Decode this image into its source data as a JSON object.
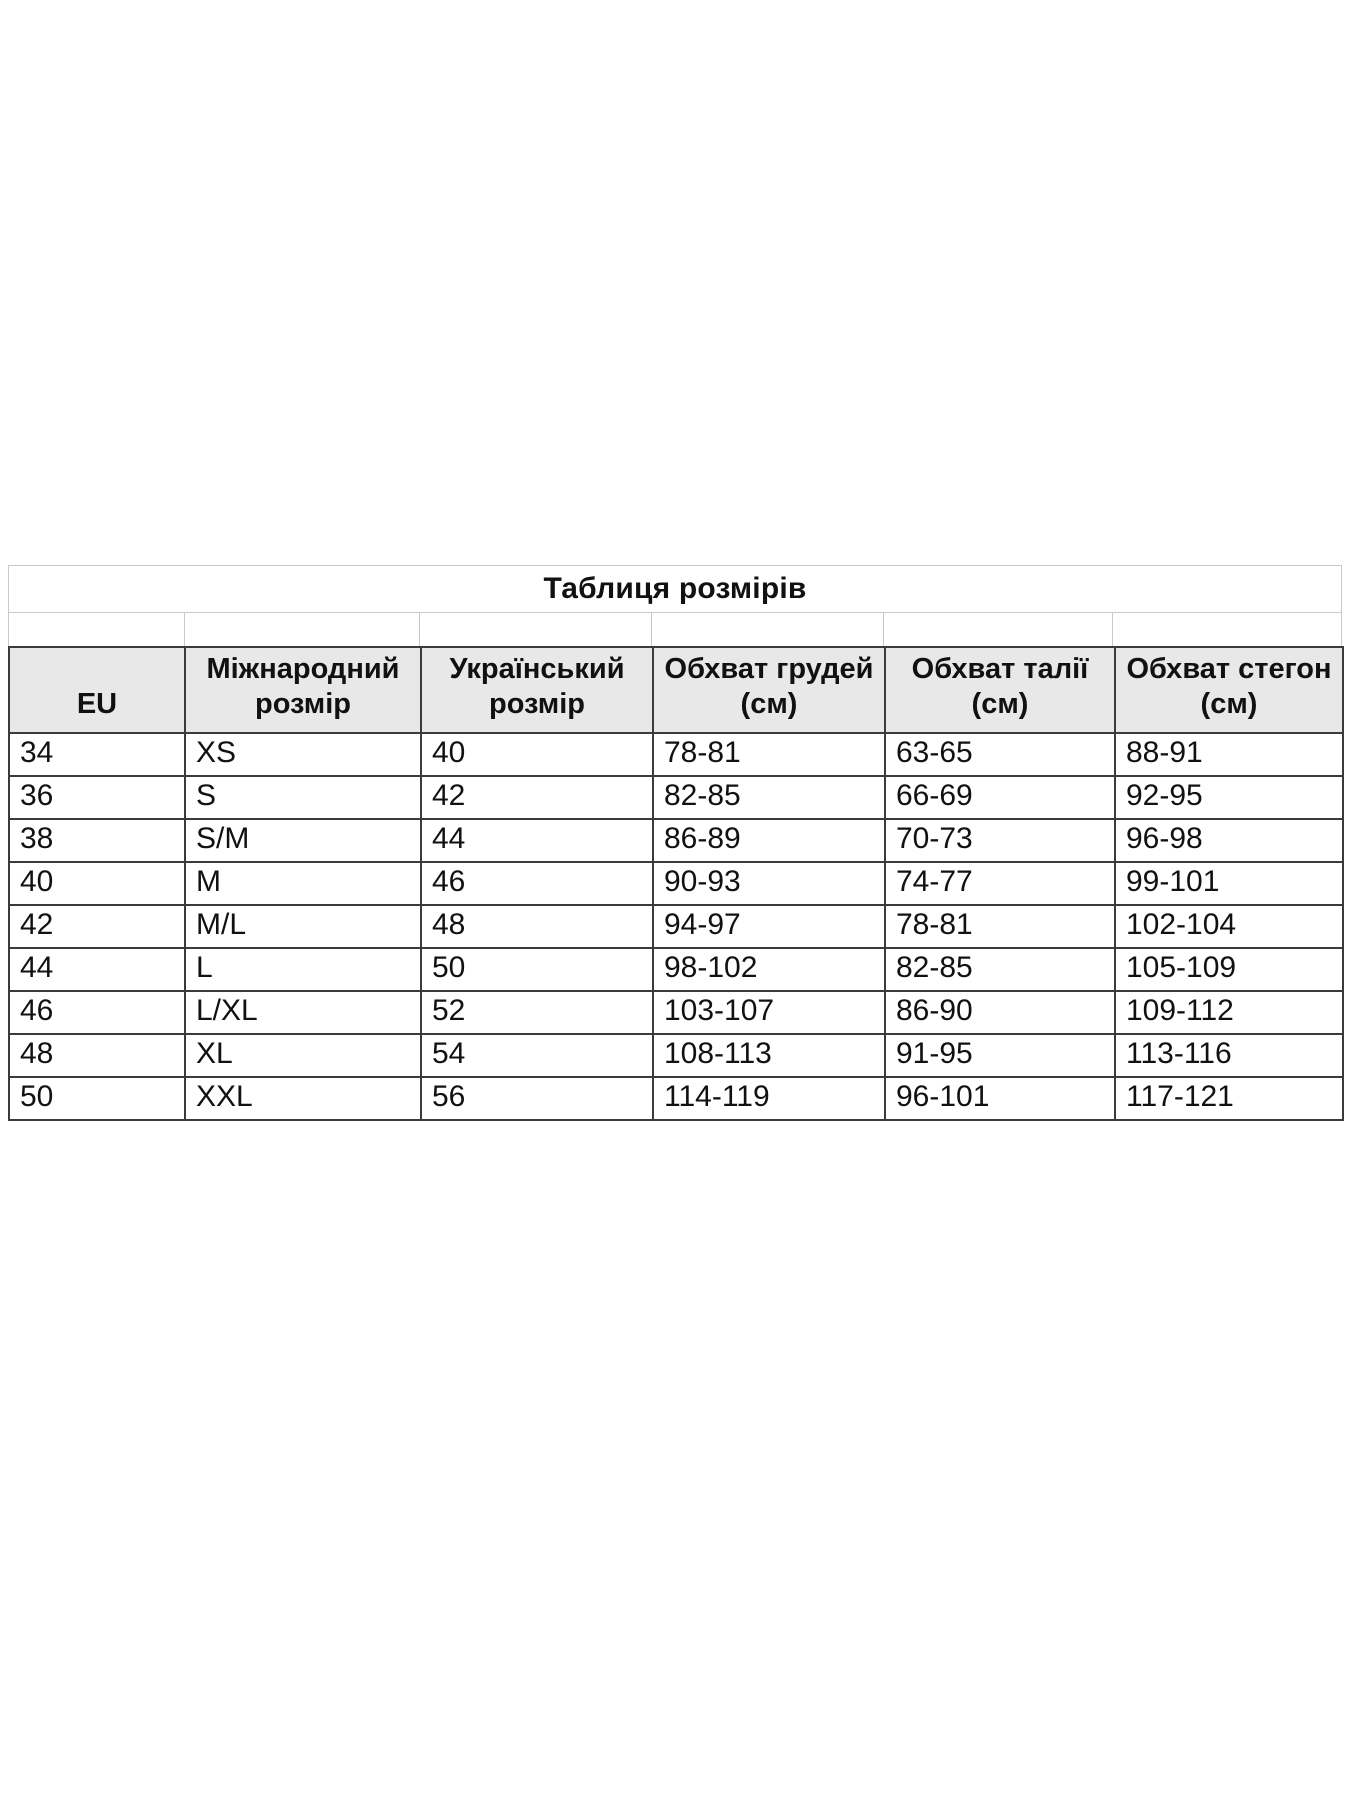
{
  "table": {
    "title": "Таблиця розмірів",
    "columns": [
      "EU",
      "Міжнародний розмір",
      "Український розмір",
      "Обхват грудей (см)",
      "Обхват талії (см)",
      "Обхват стегон (см)"
    ],
    "rows": [
      [
        "34",
        "XS",
        "40",
        "78-81",
        "63-65",
        "88-91"
      ],
      [
        "36",
        "S",
        "42",
        "82-85",
        "66-69",
        "92-95"
      ],
      [
        "38",
        "S/M",
        "44",
        "86-89",
        "70-73",
        "96-98"
      ],
      [
        "40",
        "M",
        "46",
        "90-93",
        "74-77",
        "99-101"
      ],
      [
        "42",
        "M/L",
        "48",
        "94-97",
        "78-81",
        "102-104"
      ],
      [
        "44",
        "L",
        "50",
        "98-102",
        "82-85",
        "105-109"
      ],
      [
        "46",
        "L/XL",
        "52",
        "103-107",
        "86-90",
        "109-112"
      ],
      [
        "48",
        "XL",
        "54",
        "108-113",
        "91-95",
        "113-116"
      ],
      [
        "50",
        "XXL",
        "56",
        "114-119",
        "96-101",
        "117-121"
      ]
    ],
    "colors": {
      "header_bg": "#e8e8e8",
      "border_dark": "#3b3b3b",
      "border_light": "#c9c9c9",
      "text": "#111111",
      "background": "#ffffff"
    }
  }
}
